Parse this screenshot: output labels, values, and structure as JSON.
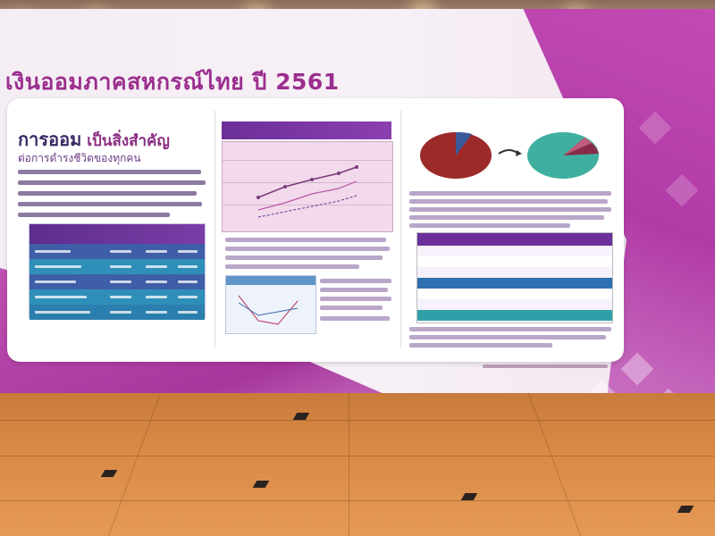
{
  "scene": {
    "headline": "เงินออมภาคสหกรณ์ไทย ปี 2561",
    "panel_title_main": "การออม",
    "panel_title_rest": " เป็นสิ่งสำคัญ",
    "panel_subtitle": "ต่อการดำรงชีวิตของทุกคน",
    "colors": {
      "brand_purple": "#9b2e8e",
      "banner_magenta": "#b13ba6",
      "table_header": "#5d2e8e",
      "table_row_blue": "#3f5ea8",
      "table_row_teal": "#2f8fb8",
      "floor": "#d98a45"
    }
  }
}
